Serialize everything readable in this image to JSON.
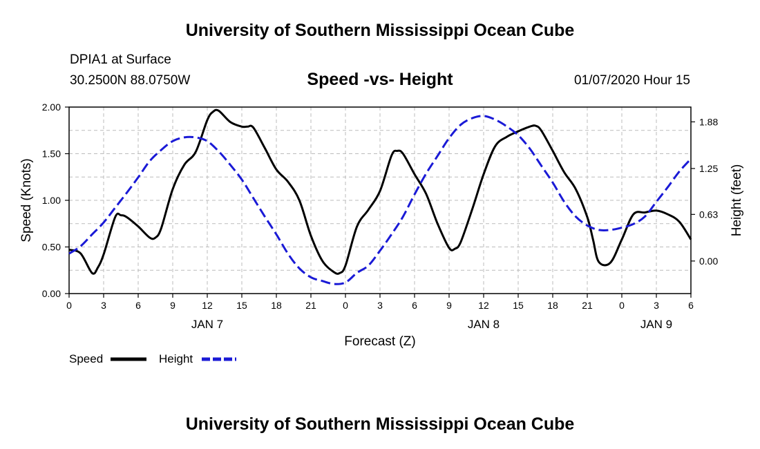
{
  "header": {
    "title_top": "University of Southern Mississippi Ocean Cube",
    "station": "DPIA1 at Surface",
    "coords": "30.2500N 88.0750W",
    "plot_title": "Speed -vs- Height",
    "datetime": "01/07/2020 Hour 15"
  },
  "footer": {
    "title_bottom": "University of Southern Mississippi Ocean Cube"
  },
  "legend": {
    "speed_label": "Speed",
    "height_label": "Height"
  },
  "colors": {
    "speed": "#000000",
    "height": "#1a1ad6",
    "grid": "#bbbbbb"
  },
  "chart_data": {
    "type": "line",
    "xlabel": "Forecast (Z)",
    "ylabel_left": "Speed (Knots)",
    "ylabel_right": "Height (feet)",
    "x_range_hours": [
      0,
      54
    ],
    "x_ticks": [
      {
        "hour": 0,
        "label": "0"
      },
      {
        "hour": 3,
        "label": "3"
      },
      {
        "hour": 6,
        "label": "6"
      },
      {
        "hour": 9,
        "label": "9"
      },
      {
        "hour": 12,
        "label": "12"
      },
      {
        "hour": 15,
        "label": "15"
      },
      {
        "hour": 18,
        "label": "18"
      },
      {
        "hour": 21,
        "label": "21"
      },
      {
        "hour": 24,
        "label": "0"
      },
      {
        "hour": 27,
        "label": "3"
      },
      {
        "hour": 30,
        "label": "6"
      },
      {
        "hour": 33,
        "label": "9"
      },
      {
        "hour": 36,
        "label": "12"
      },
      {
        "hour": 39,
        "label": "15"
      },
      {
        "hour": 42,
        "label": "18"
      },
      {
        "hour": 45,
        "label": "21"
      },
      {
        "hour": 48,
        "label": "0"
      },
      {
        "hour": 51,
        "label": "3"
      },
      {
        "hour": 54,
        "label": "6"
      }
    ],
    "day_labels": [
      {
        "hour": 12,
        "label": "JAN 7"
      },
      {
        "hour": 36,
        "label": "JAN 8"
      },
      {
        "hour": 51,
        "label": "JAN 9"
      }
    ],
    "ylim_left": [
      0,
      2
    ],
    "yticks_left": [
      "0.00",
      "0.50",
      "1.00",
      "1.50",
      "2.00"
    ],
    "yticks_left_values": [
      0,
      0.5,
      1.0,
      1.5,
      2.0
    ],
    "ylim_right": [
      -0.44,
      2.08
    ],
    "yticks_right": [
      "0.00",
      "0.63",
      "1.25",
      "1.88"
    ],
    "yticks_right_values": [
      0,
      0.63,
      1.25,
      1.88
    ],
    "grid": true,
    "series": [
      {
        "name": "Speed",
        "axis": "left",
        "style": "solid",
        "x": [
          0,
          1,
          2,
          2.5,
          3,
          4,
          4.5,
          5,
          6,
          7,
          7.5,
          8,
          9,
          10,
          11,
          12,
          12.5,
          13,
          14,
          15,
          15.5,
          16,
          17,
          18,
          19,
          20,
          21,
          22,
          23,
          23.5,
          24,
          25,
          26,
          27,
          28,
          28.5,
          29,
          30,
          31,
          32,
          33,
          33.5,
          34,
          35,
          36,
          37,
          38,
          39,
          40,
          40.5,
          41,
          42,
          43,
          44,
          45,
          45.5,
          46,
          47,
          48,
          49,
          50,
          51,
          52,
          53,
          54
        ],
        "y": [
          0.47,
          0.43,
          0.22,
          0.28,
          0.42,
          0.82,
          0.84,
          0.82,
          0.72,
          0.6,
          0.6,
          0.7,
          1.12,
          1.38,
          1.52,
          1.86,
          1.95,
          1.96,
          1.84,
          1.79,
          1.79,
          1.78,
          1.56,
          1.33,
          1.2,
          1.0,
          0.62,
          0.35,
          0.23,
          0.22,
          0.3,
          0.72,
          0.9,
          1.1,
          1.48,
          1.53,
          1.5,
          1.28,
          1.07,
          0.75,
          0.49,
          0.48,
          0.55,
          0.9,
          1.28,
          1.58,
          1.68,
          1.74,
          1.79,
          1.8,
          1.75,
          1.53,
          1.3,
          1.12,
          0.82,
          0.58,
          0.34,
          0.33,
          0.58,
          0.85,
          0.87,
          0.89,
          0.85,
          0.77,
          0.58
        ]
      },
      {
        "name": "Height",
        "axis": "right",
        "style": "dashed",
        "x": [
          0,
          1,
          2,
          3,
          4,
          5,
          6,
          7,
          8,
          9,
          10,
          11,
          12,
          13,
          14,
          15,
          16,
          17,
          18,
          19,
          20,
          21,
          22,
          23,
          24,
          25,
          26,
          27,
          28,
          29,
          30,
          31,
          32,
          33,
          34,
          35,
          36,
          37,
          38,
          39,
          40,
          41,
          42,
          43,
          44,
          45,
          46,
          47,
          48,
          49,
          50,
          51,
          52,
          53,
          54
        ],
        "y": [
          0.1,
          0.2,
          0.36,
          0.52,
          0.72,
          0.92,
          1.13,
          1.35,
          1.5,
          1.62,
          1.67,
          1.67,
          1.62,
          1.48,
          1.3,
          1.1,
          0.85,
          0.6,
          0.36,
          0.1,
          -0.1,
          -0.22,
          -0.27,
          -0.31,
          -0.29,
          -0.16,
          -0.06,
          0.14,
          0.36,
          0.6,
          0.9,
          1.18,
          1.42,
          1.66,
          1.84,
          1.93,
          1.96,
          1.91,
          1.82,
          1.7,
          1.52,
          1.29,
          1.06,
          0.8,
          0.6,
          0.48,
          0.42,
          0.42,
          0.45,
          0.5,
          0.6,
          0.8,
          1.0,
          1.21,
          1.38
        ]
      }
    ]
  }
}
